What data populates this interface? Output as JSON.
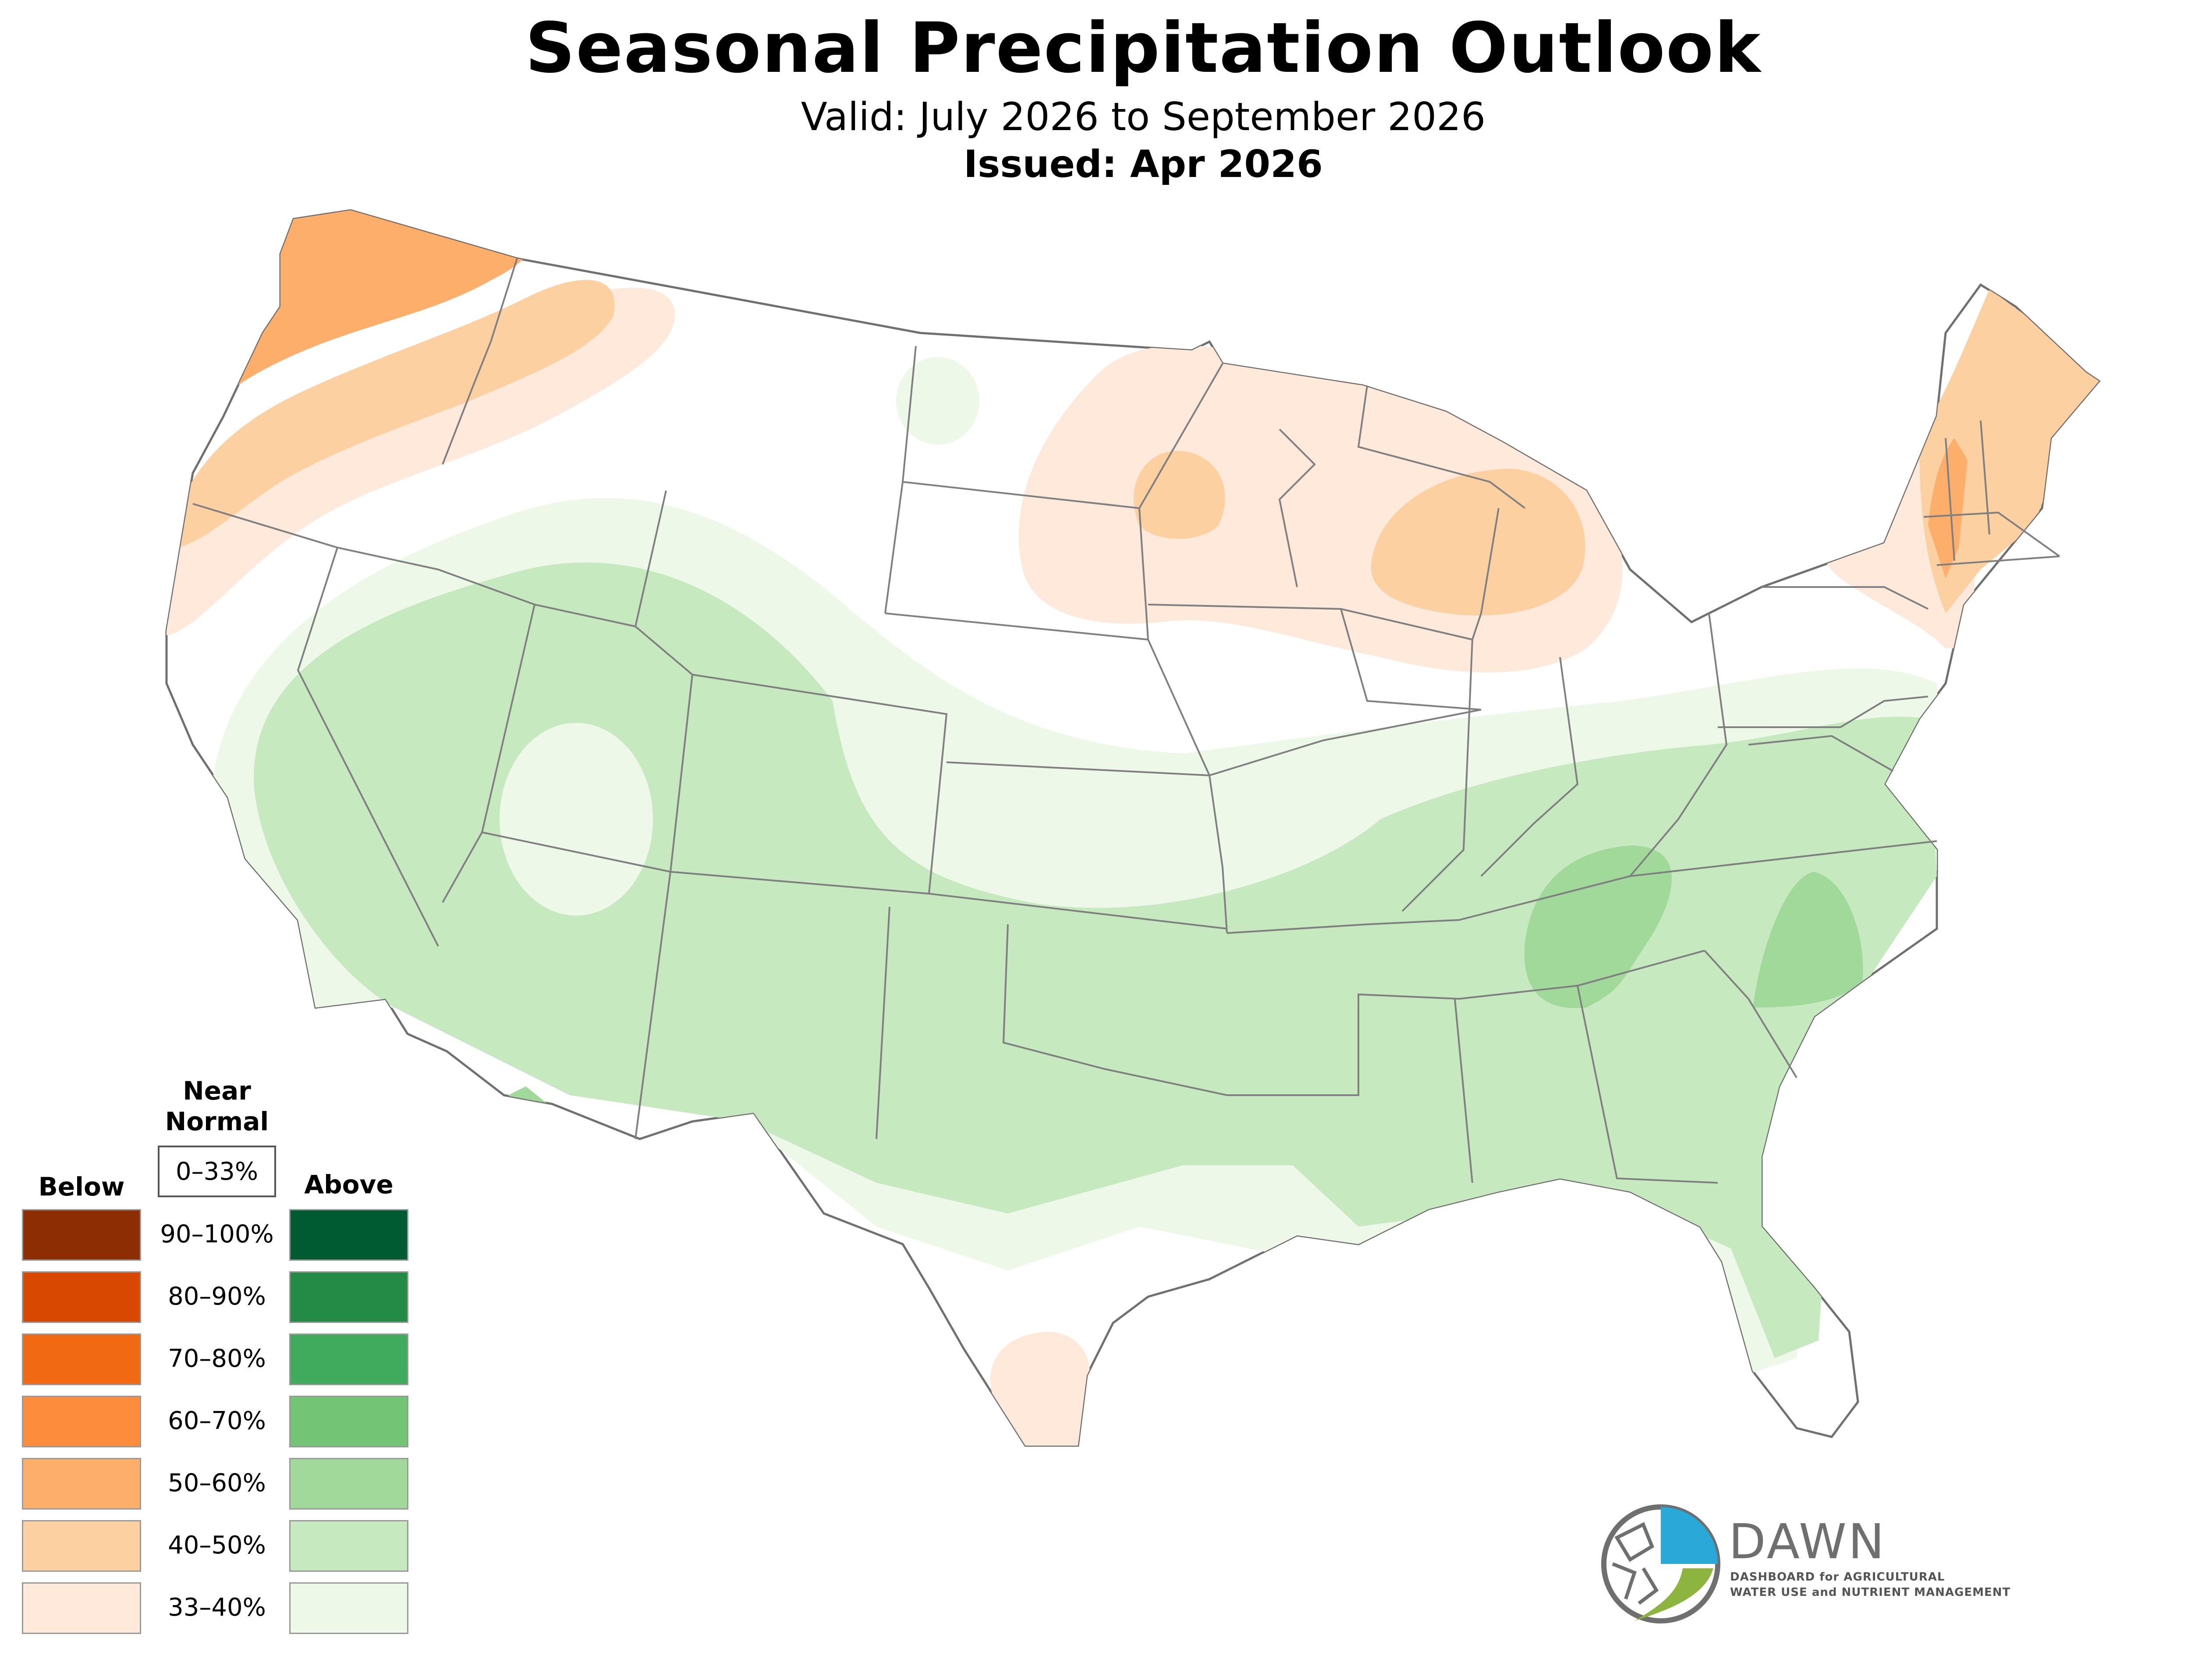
{
  "header": {
    "title": "Seasonal Precipitation Outlook",
    "subtitle": "Valid: July 2026 to September 2026",
    "issued": "Issued: Apr 2026"
  },
  "legend": {
    "near_normal_label": "Near\nNormal",
    "near_normal_range": "0–33%",
    "below_label": "Below",
    "above_label": "Above",
    "ranges": [
      "90–100%",
      "80–90%",
      "70–80%",
      "60–70%",
      "50–60%",
      "40–50%",
      "33–40%"
    ],
    "below_colors": [
      "#8c2d04",
      "#d94801",
      "#f16913",
      "#fd8d3c",
      "#fdae6b",
      "#fdd0a2",
      "#fee9da"
    ],
    "above_colors": [
      "#005a32",
      "#238b45",
      "#41ab5d",
      "#74c476",
      "#a1d99b",
      "#c7e9c0",
      "#edf8e9"
    ]
  },
  "logo": {
    "name": "DAWN",
    "tagline_line1": "DASHBOARD for AGRICULTURAL",
    "tagline_line2": "WATER USE and NUTRIENT MANAGEMENT",
    "colors": {
      "blue": "#2aa8d8",
      "green": "#8cb43f",
      "gray": "#6f6f6f"
    }
  },
  "map": {
    "region": "Contiguous United States",
    "outlook_colors": {
      "below_33_40": "#fee9da",
      "below_40_50": "#fdd0a2",
      "below_50_60": "#fdae6b",
      "above_33_40": "#edf8e9",
      "above_40_50": "#c7e9c0",
      "above_50_60": "#a1d99b"
    }
  }
}
